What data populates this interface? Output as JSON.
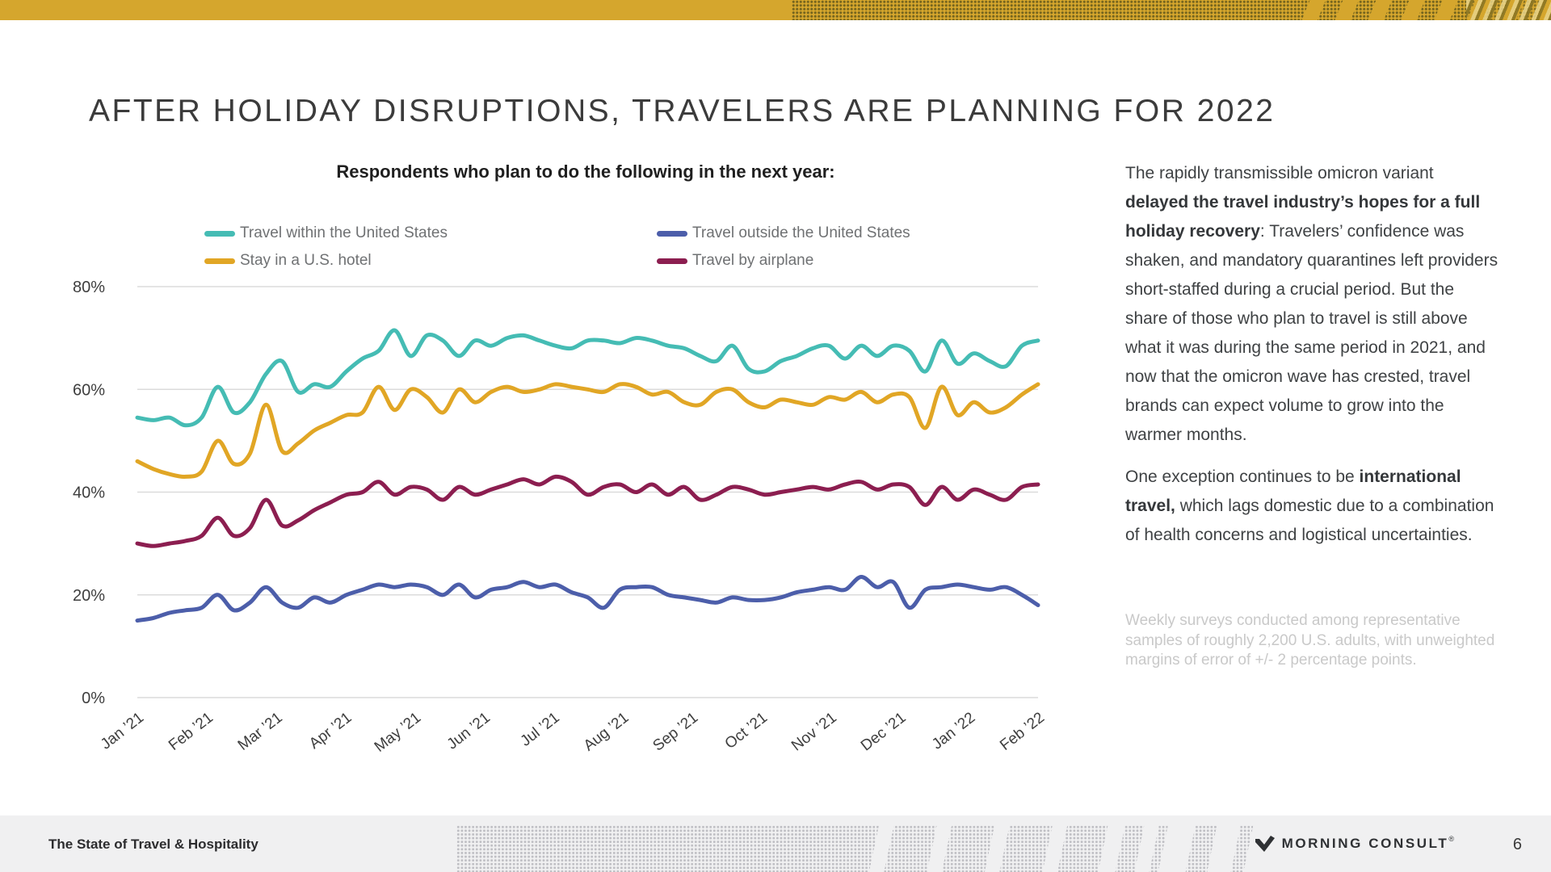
{
  "slide": {
    "title": "AFTER HOLIDAY DISRUPTIONS, TRAVELERS ARE PLANNING FOR 2022"
  },
  "colors": {
    "accent_gold_bar": "#d5a62d",
    "teal_series": "#45bcb4",
    "gold_series": "#e1a625",
    "blue_series": "#4c5eaa",
    "maroon_series": "#8c1e50",
    "gridline": "#dbdbdb",
    "axis_text": "#3e3e3e",
    "footer_bg": "#f0f0f1"
  },
  "chart_data": {
    "type": "line",
    "title": "Respondents who plan to do the following in the next year:",
    "x_unit": "weekly surveys, Jan 2021 – Feb 2022",
    "x_tick_labels": [
      "Jan ’21",
      "Feb ’21",
      "Mar ’21",
      "Apr ’21",
      "May ’21",
      "Jun ’21",
      "Jul ’21",
      "Aug ’21",
      "Sep ’21",
      "Oct ’21",
      "Nov ’21",
      "Dec ’21",
      "Jan ’22",
      "Feb ’22"
    ],
    "y_ticks": [
      {
        "label": "0%",
        "value": 0
      },
      {
        "label": "20%",
        "value": 20
      },
      {
        "label": "40%",
        "value": 40
      },
      {
        "label": "60%",
        "value": 60
      },
      {
        "label": "80%",
        "value": 80
      }
    ],
    "ylim": [
      0,
      80
    ],
    "grid": true,
    "legend_position": "top",
    "series": [
      {
        "name": "Travel within the United States",
        "color": "#45bcb4",
        "values": [
          54.5,
          54,
          54.5,
          53,
          54.5,
          60.5,
          55.5,
          57.5,
          63,
          65.5,
          59.5,
          61,
          60.5,
          63.5,
          66,
          67.5,
          71.5,
          66.5,
          70.5,
          69.5,
          66.5,
          69.5,
          68.5,
          70,
          70.5,
          69.5,
          68.5,
          68,
          69.5,
          69.5,
          69,
          70,
          69.5,
          68.5,
          68,
          66.5,
          65.5,
          68.5,
          64,
          63.5,
          65.5,
          66.5,
          68,
          68.5,
          66,
          68.5,
          66.5,
          68.5,
          67.5,
          63.5,
          69.5,
          65,
          67,
          65.5,
          64.5,
          68.5,
          69.5
        ]
      },
      {
        "name": "Travel outside the United States",
        "color": "#4c5eaa",
        "values": [
          15,
          15.5,
          16.5,
          17,
          17.5,
          20,
          17,
          18.5,
          21.5,
          18.5,
          17.5,
          19.5,
          18.5,
          20,
          21,
          22,
          21.5,
          22,
          21.5,
          20,
          22,
          19.5,
          21,
          21.5,
          22.5,
          21.5,
          22,
          20.5,
          19.5,
          17.5,
          21,
          21.5,
          21.5,
          20,
          19.5,
          19,
          18.5,
          19.5,
          19,
          19,
          19.5,
          20.5,
          21,
          21.5,
          21,
          23.5,
          21.5,
          22.5,
          17.5,
          21,
          21.5,
          22,
          21.5,
          21,
          21.5,
          20,
          18
        ]
      },
      {
        "name": "Stay in a U.S. hotel",
        "color": "#e1a625",
        "values": [
          46,
          44.5,
          43.5,
          43,
          44,
          50,
          45.5,
          47.5,
          57,
          48,
          49.5,
          52,
          53.5,
          55,
          55.5,
          60.5,
          56,
          60,
          58.5,
          55.5,
          60,
          57.5,
          59.5,
          60.5,
          59.5,
          60,
          61,
          60.5,
          60,
          59.5,
          61,
          60.5,
          59,
          59.5,
          57.5,
          57,
          59.5,
          60,
          57.5,
          56.5,
          58,
          57.5,
          57,
          58.5,
          58,
          59.5,
          57.5,
          59,
          58.5,
          52.5,
          60.5,
          55,
          57.5,
          55.5,
          56.5,
          59,
          61
        ]
      },
      {
        "name": "Travel by airplane",
        "color": "#8c1e50",
        "values": [
          30,
          29.5,
          30,
          30.5,
          31.5,
          35,
          31.5,
          33,
          38.5,
          33.5,
          34.5,
          36.5,
          38,
          39.5,
          40,
          42,
          39.5,
          41,
          40.5,
          38.5,
          41,
          39.5,
          40.5,
          41.5,
          42.5,
          41.5,
          43,
          42,
          39.5,
          41,
          41.5,
          40,
          41.5,
          39.5,
          41,
          38.5,
          39.5,
          41,
          40.5,
          39.5,
          40,
          40.5,
          41,
          40.5,
          41.5,
          42,
          40.5,
          41.5,
          41,
          37.5,
          41,
          38.5,
          40.5,
          39.5,
          38.5,
          41,
          41.5
        ]
      }
    ]
  },
  "commentary": {
    "paragraphs": [
      {
        "segments": [
          {
            "text": "The rapidly transmissible omicron variant ",
            "bold": false
          },
          {
            "text": "delayed the travel industry’s hopes for a full holiday recovery",
            "bold": true
          },
          {
            "text": ": Travelers’ confidence was shaken, and mandatory quarantines left providers short-staffed during a crucial period. But the share of those who plan to travel is still above what it was during the same period in 2021, and now that the omicron wave has crested, travel brands can expect volume to grow into the warmer months.",
            "bold": false
          }
        ]
      },
      {
        "segments": [
          {
            "text": "One exception continues to be ",
            "bold": false
          },
          {
            "text": "international travel,",
            "bold": true
          },
          {
            "text": " which lags domestic due to a combination of health concerns and logistical uncertainties.",
            "bold": false
          }
        ]
      }
    ],
    "footnote": "Weekly surveys conducted among representative samples of roughly 2,200 U.S. adults, with unweighted margins of error of +/- 2 percentage points."
  },
  "footer": {
    "report_title": "The State of Travel & Hospitality",
    "brand": "MORNING CONSULT",
    "registered": "®",
    "page_number": "6"
  }
}
